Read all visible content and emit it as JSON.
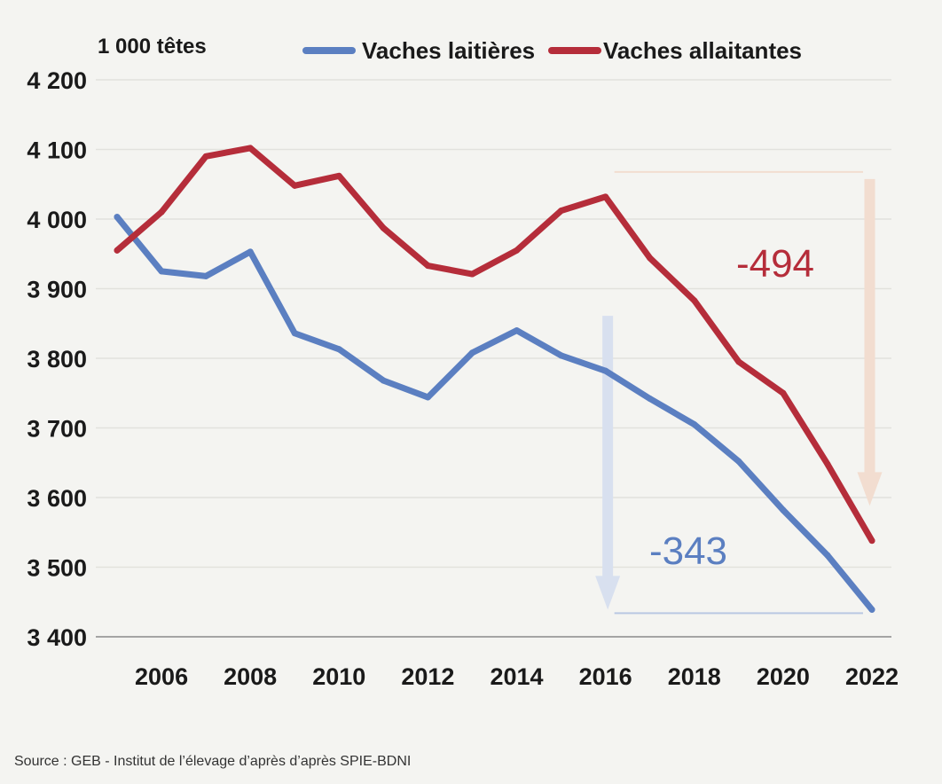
{
  "chart_data": {
    "type": "line",
    "ylabel": "1 000 têtes",
    "x": [
      2005,
      2006,
      2007,
      2008,
      2009,
      2010,
      2011,
      2012,
      2013,
      2014,
      2015,
      2016,
      2017,
      2018,
      2019,
      2020,
      2021,
      2022
    ],
    "x_ticks": [
      "2006",
      "2008",
      "2010",
      "2012",
      "2014",
      "2016",
      "2018",
      "2020",
      "2022"
    ],
    "y_ticks": [
      "3 400",
      "3 500",
      "3 600",
      "3 700",
      "3 800",
      "3 900",
      "4 000",
      "4 100",
      "4 200"
    ],
    "ylim": [
      3400,
      4200
    ],
    "grid": "horizontal",
    "legend_position": "top",
    "series": [
      {
        "name": "Vaches laitières",
        "color": "#5b7fc1",
        "values": [
          4003,
          3925,
          3918,
          3953,
          3836,
          3813,
          3768,
          3744,
          3808,
          3840,
          3804,
          3782,
          3742,
          3705,
          3652,
          3582,
          3517,
          3439
        ]
      },
      {
        "name": "Vaches allaitantes",
        "color": "#b52d3a",
        "values": [
          3955,
          4010,
          4090,
          4102,
          4048,
          4062,
          3987,
          3933,
          3921,
          3955,
          4012,
          4032,
          3944,
          3883,
          3795,
          3750,
          3648,
          3538
        ]
      }
    ],
    "annotations": [
      {
        "text": "-494",
        "color": "#b52d3a",
        "arrow_color": "#f2ddd0",
        "from_value": 4032,
        "to_value": 3538,
        "x": 2016.5
      },
      {
        "text": "-343",
        "color": "#5b7fc1",
        "arrow_color": "#d8e0ef",
        "from_value": 3782,
        "to_value": 3439,
        "x": 2016.2
      }
    ]
  },
  "source": "Source :  GEB - Institut de l’élevage d’après d’après SPIE-BDNI"
}
